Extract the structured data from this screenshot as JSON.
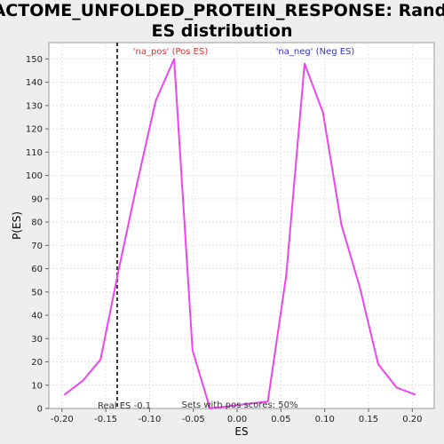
{
  "chart_data": {
    "type": "line",
    "title_line1": "REACTOME_UNFOLDED_PROTEIN_RESPONSE: Random",
    "title_line2": "ES distribution",
    "xlabel": "ES",
    "ylabel": "P(ES)",
    "xlim": [
      -0.215,
      0.225
    ],
    "ylim": [
      0,
      157
    ],
    "x_ticks": [
      -0.2,
      -0.15,
      -0.1,
      -0.05,
      0.0,
      0.05,
      0.1,
      0.15,
      0.2
    ],
    "x_tick_labels": [
      "-0.20",
      "-0.15",
      "-0.10",
      "-0.05",
      "0.00",
      "0.05",
      "0.10",
      "0.15",
      "0.20"
    ],
    "y_ticks": [
      0,
      10,
      20,
      30,
      40,
      50,
      60,
      70,
      80,
      90,
      100,
      110,
      120,
      130,
      140,
      150
    ],
    "grid": true,
    "series": [
      {
        "color": "#ee44ee",
        "x": [
          -0.197,
          -0.176,
          -0.156,
          -0.135,
          -0.114,
          -0.093,
          -0.072,
          -0.051,
          -0.031,
          0.035,
          0.056,
          0.077,
          0.098,
          0.119,
          0.14,
          0.161,
          0.182,
          0.203
        ],
        "y": [
          6,
          12,
          21,
          60,
          97,
          132,
          150,
          25,
          0,
          3,
          57,
          148,
          127,
          79,
          52,
          19,
          9,
          6
        ]
      }
    ],
    "real_es": -0.137,
    "real_es_line_color": "#333333",
    "annotations": {
      "pos_label": "'na_pos' (Pos ES)",
      "pos_color": "#dd3333",
      "neg_label": "'na_neg' (Neg ES)",
      "neg_color": "#3333cc",
      "real_es_label": "Real ES -0.1",
      "sets_label": "Sets with pos scores: 50%"
    }
  }
}
